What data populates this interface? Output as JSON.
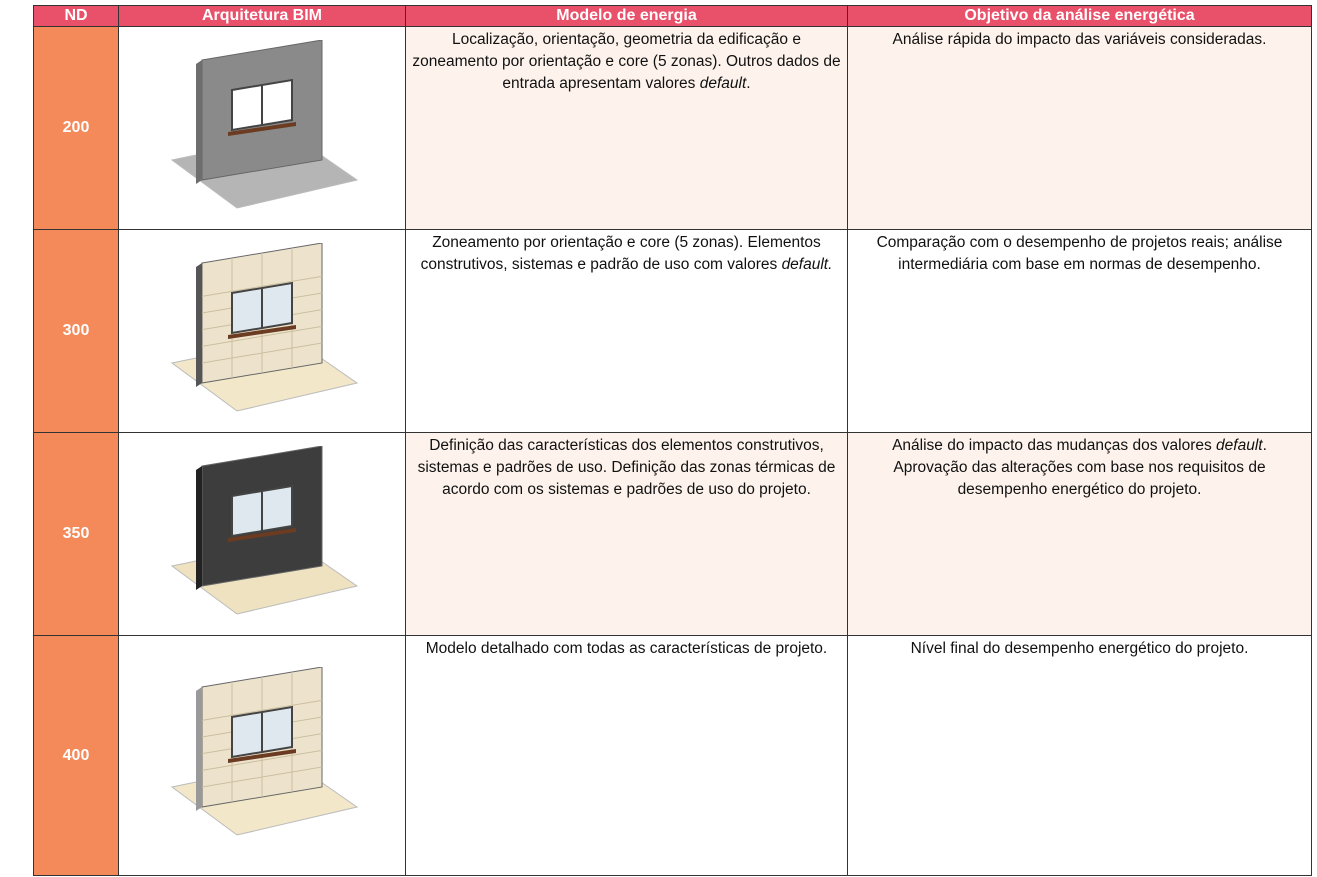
{
  "table": {
    "header": [
      "ND",
      "Arquitetura BIM",
      "Modelo de energia",
      "Objetivo da análise energética"
    ],
    "rows": [
      {
        "nd": "200",
        "model": [
          {
            "text": "Localização, orientação, geometria da edificação e zoneamento por orientação e core (5 zonas). Outros dados de entrada apresentam valores ",
            "italic": false
          },
          {
            "text": "default",
            "italic": true
          },
          {
            "text": ".",
            "italic": false
          }
        ],
        "objective": [
          {
            "text": "Análise rápida do impacto das variáveis consideradas.",
            "italic": false
          }
        ]
      },
      {
        "nd": "300",
        "model": [
          {
            "text": "Zoneamento por orientação e core (5 zonas). Elementos construtivos, sistemas e padrão de uso com valores ",
            "italic": false
          },
          {
            "text": "default.",
            "italic": true
          }
        ],
        "objective": [
          {
            "text": "Comparação com o desempenho de projetos reais; análise intermediária com base em normas de desempenho.",
            "italic": false
          }
        ]
      },
      {
        "nd": "350",
        "model": [
          {
            "text": "Definição das características dos elementos construtivos, sistemas e padrões de uso. Definição das zonas térmicas de acordo com os sistemas e padrões de uso do projeto.",
            "italic": false
          }
        ],
        "objective": [
          {
            "text": "Análise do impacto das mudanças dos valores ",
            "italic": false
          },
          {
            "text": "default",
            "italic": true
          },
          {
            "text": ". Aprovação das alterações com base nos requisitos de desempenho energético do projeto.",
            "italic": false
          }
        ]
      },
      {
        "nd": "400",
        "model": [
          {
            "text": "Modelo detalhado com todas as características de projeto.",
            "italic": false
          }
        ],
        "objective": [
          {
            "text": "Nível final do desempenho energético do projeto.",
            "italic": false
          }
        ]
      }
    ]
  }
}
